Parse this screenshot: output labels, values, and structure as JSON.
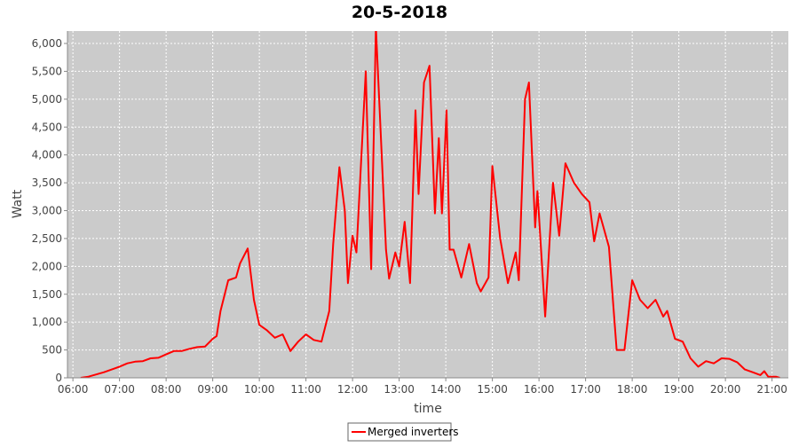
{
  "chart_data": {
    "type": "line",
    "title": "20-5-2018",
    "x_label": "time",
    "y_label": "Watt",
    "x": [
      "06:10",
      "06:20",
      "06:30",
      "06:40",
      "06:50",
      "07:00",
      "07:10",
      "07:20",
      "07:30",
      "07:40",
      "07:50",
      "08:00",
      "08:10",
      "08:20",
      "08:30",
      "08:40",
      "08:50",
      "09:00",
      "09:05",
      "09:10",
      "09:20",
      "09:30",
      "09:35",
      "09:45",
      "09:53",
      "10:00",
      "10:10",
      "10:20",
      "10:30",
      "10:40",
      "10:50",
      "11:00",
      "11:10",
      "11:20",
      "11:30",
      "11:35",
      "11:43",
      "11:50",
      "11:54",
      "12:00",
      "12:05",
      "12:17",
      "12:24",
      "12:30",
      "12:43",
      "12:47",
      "12:55",
      "13:00",
      "13:07",
      "13:14",
      "13:21",
      "13:25",
      "13:32",
      "13:39",
      "13:46",
      "13:51",
      "13:55",
      "14:01",
      "14:05",
      "14:10",
      "14:20",
      "14:30",
      "14:40",
      "14:45",
      "14:55",
      "15:00",
      "15:10",
      "15:20",
      "15:30",
      "15:34",
      "15:42",
      "15:47",
      "15:55",
      "15:58",
      "16:08",
      "16:18",
      "16:26",
      "16:34",
      "16:45",
      "16:55",
      "17:05",
      "17:11",
      "17:18",
      "17:30",
      "17:40",
      "17:50",
      "18:00",
      "18:10",
      "18:20",
      "18:30",
      "18:40",
      "18:45",
      "18:55",
      "19:05",
      "19:15",
      "19:25",
      "19:35",
      "19:45",
      "19:55",
      "20:05",
      "20:15",
      "20:25",
      "20:35",
      "20:45",
      "20:50",
      "20:55",
      "21:05",
      "21:10"
    ],
    "series": [
      {
        "name": "Merged inverters",
        "color": "#ff0000",
        "values": [
          0,
          20,
          60,
          100,
          150,
          200,
          260,
          290,
          300,
          350,
          360,
          420,
          480,
          480,
          520,
          550,
          560,
          700,
          750,
          1200,
          1750,
          1800,
          2050,
          2320,
          1400,
          950,
          850,
          720,
          780,
          480,
          650,
          780,
          680,
          650,
          1200,
          2400,
          3780,
          3000,
          1700,
          2550,
          2250,
          5500,
          1950,
          6300,
          2300,
          1780,
          2250,
          2000,
          2800,
          1700,
          4800,
          3300,
          5300,
          5600,
          2950,
          4300,
          2950,
          4800,
          2300,
          2300,
          1800,
          2400,
          1700,
          1550,
          1800,
          3800,
          2500,
          1700,
          2250,
          1750,
          5000,
          5300,
          2700,
          3350,
          1100,
          3500,
          2550,
          3850,
          3500,
          3300,
          3150,
          2450,
          2950,
          2350,
          500,
          500,
          1750,
          1400,
          1250,
          1400,
          1100,
          1200,
          700,
          650,
          350,
          200,
          300,
          260,
          350,
          340,
          280,
          150,
          100,
          50,
          120,
          20,
          20,
          0
        ]
      }
    ],
    "xlim": [
      "05:53",
      "21:21"
    ],
    "xticks": [
      "06:00",
      "07:00",
      "08:00",
      "09:00",
      "10:00",
      "11:00",
      "12:00",
      "13:00",
      "14:00",
      "15:00",
      "16:00",
      "17:00",
      "18:00",
      "19:00",
      "20:00",
      "21:00"
    ],
    "ylim": [
      0,
      6223
    ],
    "yticks": [
      0,
      500,
      {
        "value": 1000,
        "label": "1,000"
      },
      {
        "value": 1500,
        "label": "1,500"
      },
      {
        "value": 2000,
        "label": "2,000"
      },
      {
        "value": 2500,
        "label": "2,500"
      },
      {
        "value": 3000,
        "label": "3,000"
      },
      {
        "value": 3500,
        "label": "3,500"
      },
      {
        "value": 4000,
        "label": "4,000"
      },
      {
        "value": 4500,
        "label": "4,500"
      },
      {
        "value": 5000,
        "label": "5,000"
      },
      {
        "value": 5500,
        "label": "5,500"
      },
      {
        "value": 6000,
        "label": "6,000"
      }
    ],
    "grid": true,
    "legend": "bottom",
    "plot_background": "#cbcbcb"
  }
}
